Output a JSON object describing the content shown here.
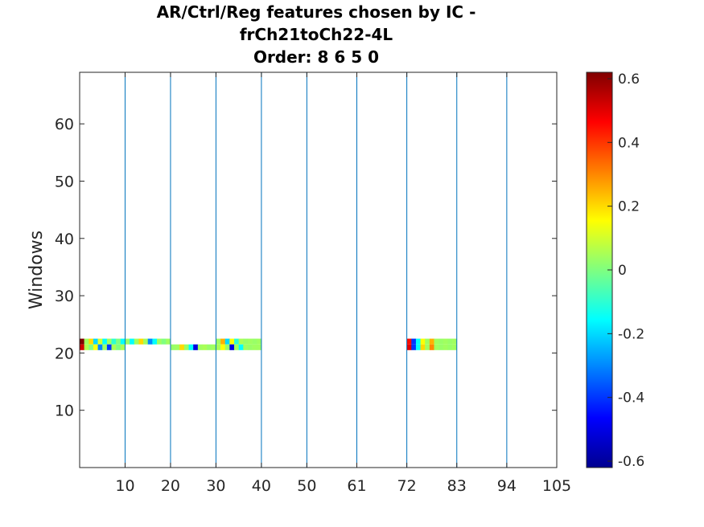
{
  "chart_data": {
    "type": "heatmap",
    "title": [
      "AR/Ctrl/Reg features chosen by IC -",
      "frCh21toCh22-4L",
      "Order: 8 6 5 0"
    ],
    "xlabel": "",
    "ylabel": "Windows",
    "xlim": [
      0,
      105
    ],
    "ylim": [
      0,
      69
    ],
    "x_ticks": [
      {
        "value": 10,
        "label": "10"
      },
      {
        "value": 20,
        "label": "20"
      },
      {
        "value": 30,
        "label": "30"
      },
      {
        "value": 40,
        "label": "40"
      },
      {
        "value": 50,
        "label": "50"
      },
      {
        "value": 61,
        "label": "61"
      },
      {
        "value": 72,
        "label": "72"
      },
      {
        "value": 83,
        "label": "83"
      },
      {
        "value": 94,
        "label": "94"
      },
      {
        "value": 105,
        "label": "105"
      }
    ],
    "y_ticks": [
      10,
      20,
      30,
      40,
      50,
      60
    ],
    "separators": [
      10,
      20,
      30,
      40,
      50,
      61,
      72,
      83,
      94,
      105
    ],
    "separator_color": "#0072bd",
    "colorbar": {
      "colormap": "jet",
      "range": [
        -0.62,
        0.62
      ],
      "ticks": [
        {
          "value": 0.6,
          "label": "0.6"
        },
        {
          "value": 0.4,
          "label": "0.4"
        },
        {
          "value": 0.2,
          "label": "0.2"
        },
        {
          "value": 0,
          "label": "0"
        },
        {
          "value": -0.2,
          "label": "-0.2"
        },
        {
          "value": -0.4,
          "label": "-0.4"
        },
        {
          "value": -0.6,
          "label": "-0.6"
        }
      ]
    },
    "cells": [
      {
        "row": 22,
        "from": 0,
        "to": 1,
        "values": [
          0.62
        ]
      },
      {
        "row": 21,
        "from": 0,
        "to": 1,
        "values": [
          0.52
        ]
      },
      {
        "row": 22,
        "from": 1,
        "to": 10,
        "values": [
          0.04,
          0.2,
          -0.2,
          0.1,
          -0.15,
          0.04,
          -0.1,
          0.0,
          -0.15
        ]
      },
      {
        "row": 21,
        "from": 1,
        "to": 10,
        "values": [
          0.06,
          0.0,
          0.15,
          -0.3,
          0.04,
          -0.4,
          0.05,
          0.0,
          0.05
        ]
      },
      {
        "row": 22,
        "from": 10,
        "to": 20,
        "values": [
          0.03,
          -0.15,
          0.04,
          0.2,
          0.04,
          -0.3,
          -0.15,
          0.04,
          0.0,
          0.04
        ]
      },
      {
        "row": 21,
        "from": 20,
        "to": 30,
        "values": [
          0.03,
          0.04,
          0.2,
          0.03,
          -0.15,
          -0.5,
          0.04,
          0.05,
          0.03,
          0.04
        ]
      },
      {
        "row": 22,
        "from": 30,
        "to": 40,
        "values": [
          0.04,
          0.25,
          -0.2,
          0.15,
          -0.1,
          0.05,
          0.03,
          0.04,
          0.03,
          0.04
        ]
      },
      {
        "row": 21,
        "from": 30,
        "to": 40,
        "values": [
          0.05,
          0.15,
          0.03,
          -0.5,
          0.04,
          -0.15,
          0.04,
          0.03,
          0.04,
          0.04
        ]
      },
      {
        "row": 22,
        "from": 72,
        "to": 83,
        "values": [
          0.45,
          -0.4,
          -0.15,
          0.15,
          0.04,
          0.25,
          0.04,
          0.03,
          0.04,
          0.03,
          0.04
        ]
      },
      {
        "row": 21,
        "from": 72,
        "to": 83,
        "values": [
          0.5,
          -0.4,
          -0.15,
          0.2,
          0.04,
          0.3,
          0.04,
          0.03,
          0.04,
          0.03,
          0.04
        ]
      }
    ]
  }
}
